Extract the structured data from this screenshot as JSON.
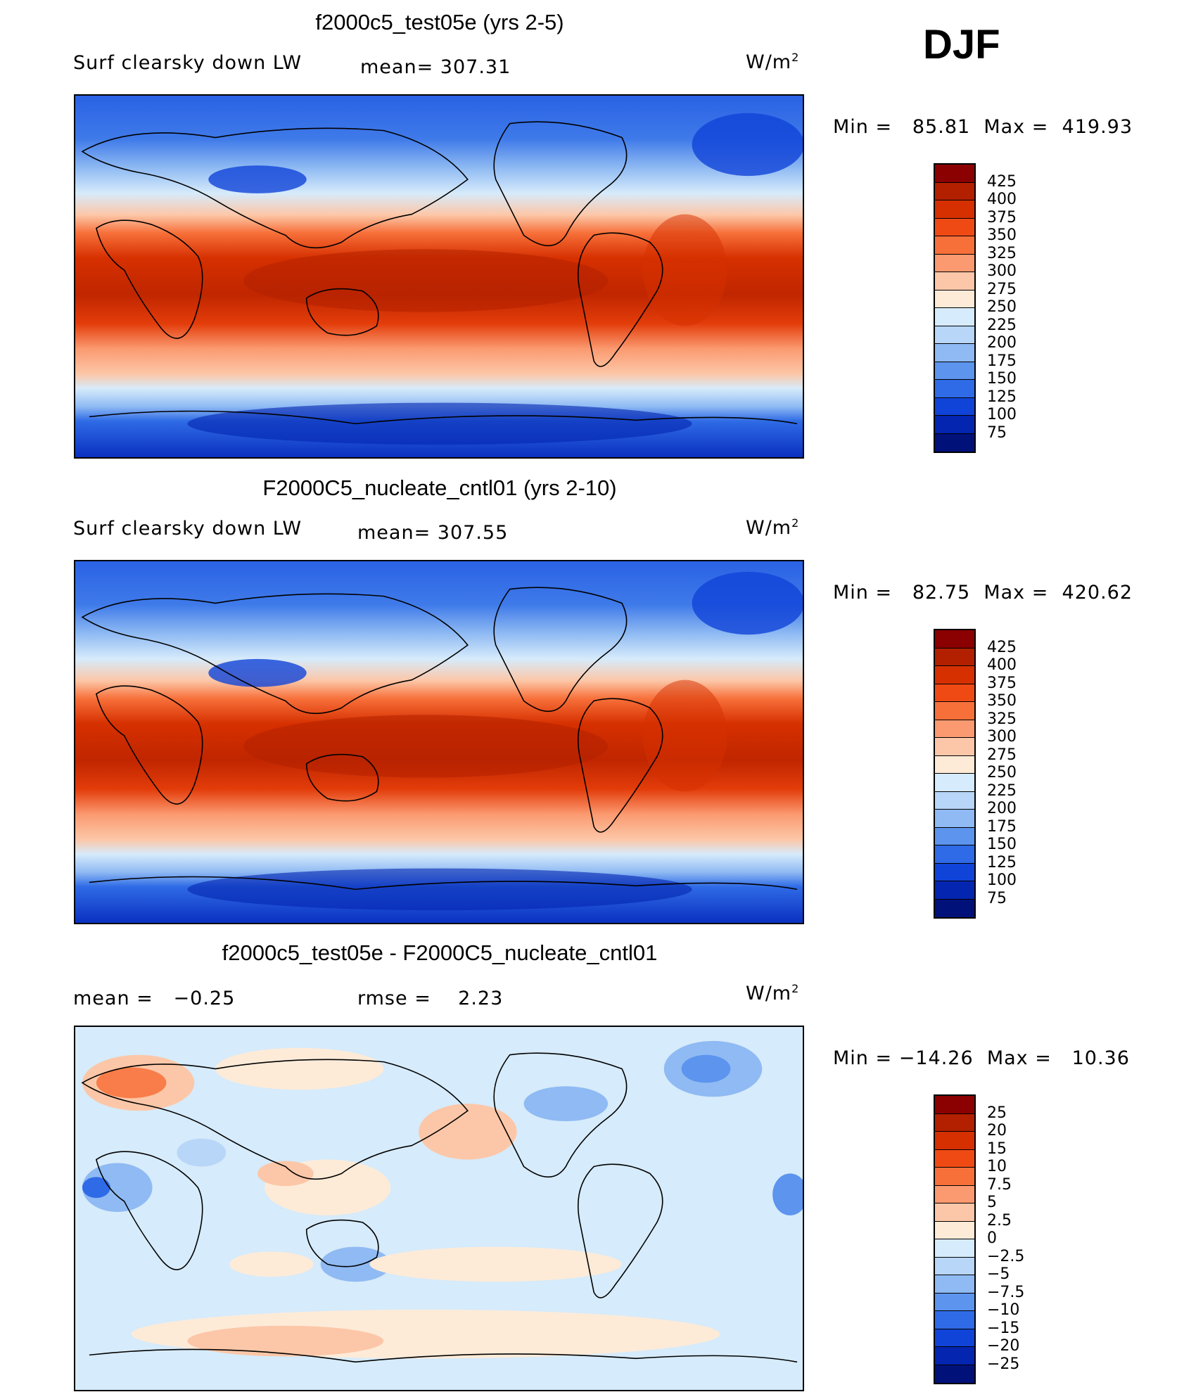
{
  "season": "DJF",
  "panels": [
    {
      "title": "f2000c5_test05e (yrs 2-5)",
      "left_label": "Surf clearsky down LW",
      "stat_label": "mean=",
      "stat_value": "307.31",
      "units_base": "W/m",
      "units_exp": "2",
      "min_label": "Min =",
      "min_value": "85.81",
      "max_label": "Max =",
      "max_value": "419.93",
      "ticks": [
        "425",
        "400",
        "375",
        "350",
        "325",
        "300",
        "275",
        "250",
        "225",
        "200",
        "175",
        "150",
        "125",
        "100",
        "75"
      ],
      "colors": [
        "#8b0000",
        "#b22000",
        "#d63000",
        "#f04a14",
        "#f7703a",
        "#fb9a70",
        "#fcc7a8",
        "#fdebd8",
        "#d6ebfb",
        "#b8d6f7",
        "#8fbaf3",
        "#5c94ee",
        "#2f6be6",
        "#1044d8",
        "#0425b0",
        "#00117a"
      ]
    },
    {
      "title": "F2000C5_nucleate_cntl01 (yrs 2-10)",
      "left_label": "Surf clearsky down LW",
      "stat_label": "mean=",
      "stat_value": "307.55",
      "units_base": "W/m",
      "units_exp": "2",
      "min_label": "Min =",
      "min_value": "82.75",
      "max_label": "Max =",
      "max_value": "420.62",
      "ticks": [
        "425",
        "400",
        "375",
        "350",
        "325",
        "300",
        "275",
        "250",
        "225",
        "200",
        "175",
        "150",
        "125",
        "100",
        "75"
      ],
      "colors": [
        "#8b0000",
        "#b22000",
        "#d63000",
        "#f04a14",
        "#f7703a",
        "#fb9a70",
        "#fcc7a8",
        "#fdebd8",
        "#d6ebfb",
        "#b8d6f7",
        "#8fbaf3",
        "#5c94ee",
        "#2f6be6",
        "#1044d8",
        "#0425b0",
        "#00117a"
      ]
    },
    {
      "title": "f2000c5_test05e - F2000C5_nucleate_cntl01",
      "left_label": "mean =",
      "left_value": "−0.25",
      "stat_label": "rmse =",
      "stat_value": "2.23",
      "units_base": "W/m",
      "units_exp": "2",
      "min_label": "Min =",
      "min_value": "−14.26",
      "max_label": "Max =",
      "max_value": "10.36",
      "ticks": [
        "25",
        "20",
        "15",
        "10",
        "7.5",
        "5",
        "2.5",
        "0",
        "−2.5",
        "−5",
        "−7.5",
        "−10",
        "−15",
        "−20",
        "−25"
      ],
      "colors": [
        "#8b0000",
        "#b22000",
        "#d63000",
        "#f04a14",
        "#f7703a",
        "#fb9a70",
        "#fcc7a8",
        "#fdebd8",
        "#d6ebfb",
        "#b8d6f7",
        "#8fbaf3",
        "#5c94ee",
        "#2f6be6",
        "#1044d8",
        "#0425b0",
        "#00117a"
      ]
    }
  ]
}
